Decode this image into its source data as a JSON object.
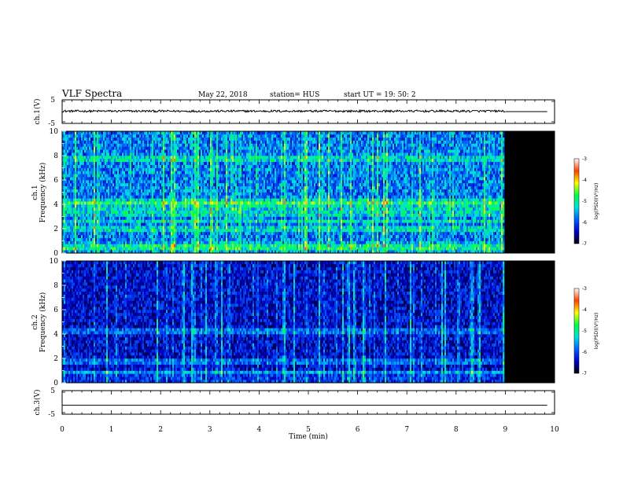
{
  "header": {
    "title": "VLF Spectra",
    "date": "May 22, 2018",
    "station": "station= HUS",
    "start": "start  UT =   19: 50: 2"
  },
  "chart_data": [
    {
      "type": "line",
      "ylabel": "ch.1(V)",
      "xlim": [
        0,
        10
      ],
      "ylim": [
        -5,
        5
      ],
      "yticks": [
        "5",
        "-5"
      ],
      "series": [
        {
          "x": [
            0,
            9.0,
            9.0,
            9.85
          ],
          "values": [
            0.2,
            0.2,
            0.0,
            0.0
          ]
        }
      ]
    },
    {
      "type": "heatmap",
      "ylabel_line1": "ch.1",
      "ylabel_line2": "Frequency (kHz)",
      "xlim": [
        0,
        10
      ],
      "ylim": [
        0,
        10
      ],
      "yticks": [
        "0",
        "2",
        "4",
        "6",
        "8",
        "10"
      ],
      "data_end_x": 9.0,
      "bright_bands_khz": [
        0.4,
        0.6,
        2.0,
        2.6,
        3.2,
        3.6,
        4.0,
        4.3,
        7.7
      ],
      "colorbar": {
        "label": "log(PSD)(V²/Hz)",
        "ticks": [
          "-3",
          "-4",
          "-5",
          "-6",
          "-7"
        ],
        "range": [
          -7,
          -3
        ],
        "colors": [
          "#000000",
          "#0000c8",
          "#0060ff",
          "#00e0e0",
          "#00ff40",
          "#ffff00",
          "#ff4000",
          "#ffffff"
        ]
      }
    },
    {
      "type": "heatmap",
      "ylabel_line1": "ch.2",
      "ylabel_line2": "Frequency (kHz)",
      "xlim": [
        0,
        10
      ],
      "ylim": [
        0,
        10
      ],
      "yticks": [
        "0",
        "2",
        "4",
        "6",
        "8",
        "10"
      ],
      "data_end_x": 9.0,
      "bright_bands_khz": [
        0.9,
        1.8,
        4.3
      ],
      "colorbar": {
        "label": "log(PSD)(V²/Hz)",
        "ticks": [
          "-3",
          "-4",
          "-5",
          "-6",
          "-7"
        ],
        "range": [
          -7,
          -3
        ],
        "colors": [
          "#000000",
          "#0000c8",
          "#0060ff",
          "#00e0e0",
          "#00ff40",
          "#ffff00",
          "#ff4000",
          "#ffffff"
        ]
      }
    },
    {
      "type": "line",
      "ylabel": "ch.3(V)",
      "xlim": [
        0,
        10
      ],
      "ylim": [
        -5,
        5
      ],
      "yticks": [
        "5",
        "-5"
      ],
      "series": [
        {
          "x": [
            0,
            9.85
          ],
          "values": [
            -1.2,
            -1.2
          ]
        }
      ]
    }
  ],
  "xaxis": {
    "label": "Time (min)",
    "ticks": [
      "0",
      "1",
      "2",
      "3",
      "4",
      "5",
      "6",
      "7",
      "8",
      "9",
      "10"
    ]
  }
}
